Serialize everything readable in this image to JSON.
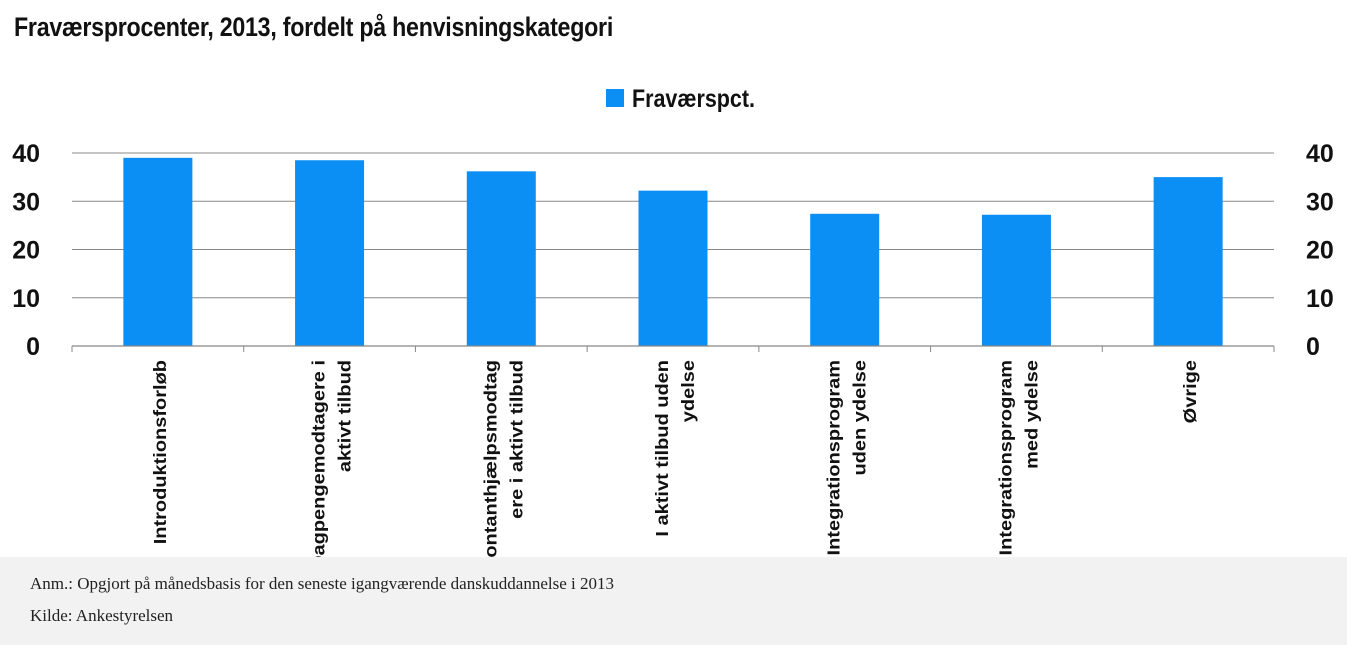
{
  "title": "Fraværsprocenter, 2013, fordelt på henvisningskategori",
  "colors": {
    "bar": "#0b8ff5",
    "grid": "#888888",
    "text": "#111111"
  },
  "chart_data": {
    "type": "bar",
    "title": "Fraværsprocenter, 2013, fordelt på henvisningskategori",
    "categories": [
      [
        "Introduktionsforløb"
      ],
      [
        "Dagpengemodtagere i",
        "aktivt tilbud"
      ],
      [
        "Kontanthjælpsmodtag",
        "ere i aktivt tilbud"
      ],
      [
        "I aktivt tilbud uden",
        "ydelse"
      ],
      [
        "Integrationsprogram",
        "uden ydelse"
      ],
      [
        "Integrationsprogram",
        "med ydelse"
      ],
      [
        "Øvrige"
      ]
    ],
    "series": [
      {
        "name": "Fraværspct.",
        "values": [
          39,
          38.5,
          36.2,
          32.2,
          27.4,
          27.2,
          35
        ]
      }
    ],
    "ylim": [
      0,
      40
    ],
    "yticks": [
      0,
      10,
      20,
      30,
      40
    ],
    "grid": true,
    "legend": "top-center",
    "secondary_y_axis": true
  },
  "notes": {
    "anm": "Anm.: Opgjort på månedsbasis for den seneste igangværende danskuddannelse i 2013",
    "kilde": "Kilde: Ankestyrelsen"
  }
}
